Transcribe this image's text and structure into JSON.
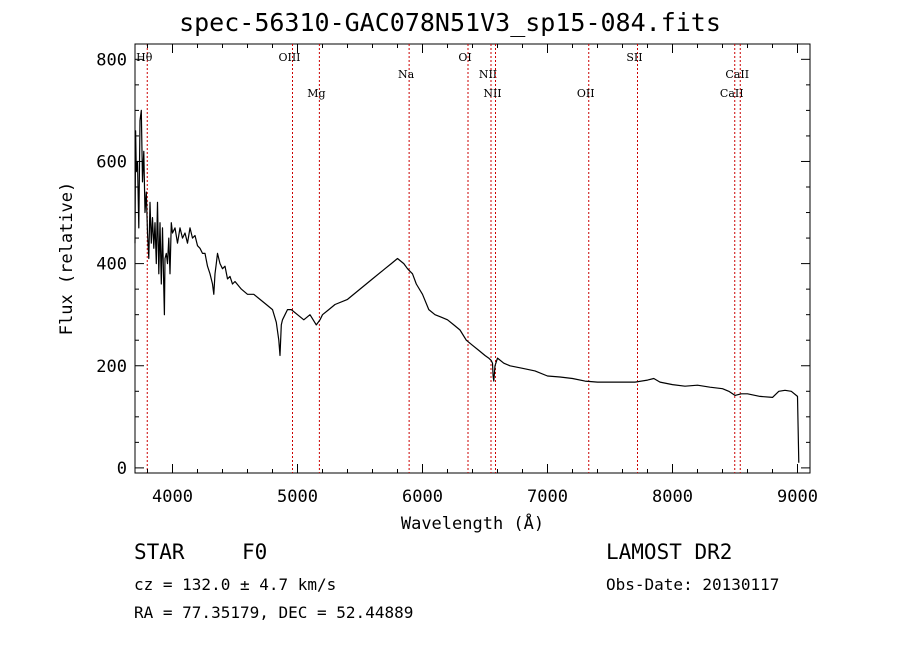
{
  "title": "spec-56310-GAC078N51V3_sp15-084.fits",
  "footer": {
    "object_class": "STAR",
    "subclass": "F0",
    "redshift": "cz = 132.0 ± 4.7 km/s",
    "coords": "RA =  77.35179, DEC =  52.44889",
    "survey": "LAMOST DR2",
    "obs_date": "Obs-Date: 20130117"
  },
  "chart_data": {
    "type": "line",
    "title": "spec-56310-GAC078N51V3_sp15-084.fits",
    "xlabel": "Wavelength (Å)",
    "ylabel": "Flux (relative)",
    "xlim": [
      3700,
      9100
    ],
    "ylim": [
      -10,
      830
    ],
    "xticks": [
      4000,
      5000,
      6000,
      7000,
      8000,
      9000
    ],
    "yticks": [
      0,
      200,
      400,
      600,
      800
    ],
    "grid": false,
    "line_color": "#000000",
    "marker_color": "#cc0000",
    "spectrum": {
      "x": [
        3700,
        3705,
        3710,
        3720,
        3730,
        3740,
        3750,
        3760,
        3770,
        3780,
        3790,
        3800,
        3810,
        3820,
        3830,
        3840,
        3850,
        3860,
        3870,
        3880,
        3890,
        3900,
        3910,
        3920,
        3930,
        3935,
        3940,
        3950,
        3960,
        3970,
        3980,
        3990,
        4000,
        4020,
        4040,
        4060,
        4080,
        4100,
        4120,
        4140,
        4160,
        4180,
        4200,
        4220,
        4240,
        4260,
        4280,
        4300,
        4320,
        4330,
        4340,
        4350,
        4360,
        4380,
        4400,
        4420,
        4440,
        4460,
        4480,
        4500,
        4550,
        4600,
        4650,
        4700,
        4750,
        4800,
        4830,
        4850,
        4860,
        4870,
        4880,
        4900,
        4920,
        4950,
        5000,
        5050,
        5100,
        5150,
        5180,
        5200,
        5250,
        5300,
        5400,
        5500,
        5600,
        5700,
        5750,
        5800,
        5850,
        5880,
        5900,
        5920,
        5950,
        6000,
        6050,
        6100,
        6150,
        6200,
        6250,
        6300,
        6350,
        6400,
        6450,
        6500,
        6530,
        6550,
        6560,
        6565,
        6570,
        6580,
        6600,
        6650,
        6700,
        6800,
        6900,
        7000,
        7100,
        7200,
        7300,
        7400,
        7500,
        7600,
        7700,
        7800,
        7850,
        7900,
        8000,
        8100,
        8200,
        8300,
        8400,
        8450,
        8500,
        8550,
        8600,
        8700,
        8800,
        8850,
        8900,
        8950,
        9000,
        9005,
        9010
      ],
      "y": [
        440,
        660,
        580,
        600,
        470,
        680,
        700,
        560,
        620,
        500,
        540,
        460,
        410,
        520,
        440,
        490,
        430,
        480,
        400,
        520,
        380,
        480,
        360,
        470,
        350,
        300,
        410,
        420,
        400,
        450,
        380,
        480,
        460,
        470,
        440,
        470,
        450,
        460,
        440,
        470,
        450,
        455,
        435,
        430,
        420,
        420,
        395,
        380,
        360,
        340,
        380,
        400,
        420,
        400,
        390,
        395,
        370,
        375,
        360,
        365,
        350,
        340,
        340,
        330,
        320,
        310,
        285,
        250,
        220,
        280,
        290,
        300,
        310,
        310,
        300,
        290,
        300,
        280,
        290,
        300,
        310,
        320,
        330,
        350,
        370,
        390,
        400,
        410,
        400,
        390,
        385,
        380,
        360,
        340,
        310,
        300,
        295,
        290,
        280,
        270,
        250,
        240,
        230,
        220,
        215,
        210,
        205,
        180,
        170,
        200,
        215,
        205,
        200,
        195,
        190,
        180,
        178,
        175,
        170,
        168,
        168,
        168,
        168,
        172,
        175,
        168,
        163,
        160,
        162,
        158,
        155,
        150,
        142,
        145,
        145,
        140,
        138,
        150,
        152,
        150,
        140,
        80,
        10
      ]
    },
    "lines": [
      {
        "label": "Hθ",
        "wavelength": 3798,
        "row": "top"
      },
      {
        "label": "OIII",
        "wavelength": 4960,
        "row": "top"
      },
      {
        "label": "Mg",
        "wavelength": 5175,
        "row": "bottom"
      },
      {
        "label": "Na",
        "wavelength": 5893,
        "row": "mid"
      },
      {
        "label": "OI",
        "wavelength": 6364,
        "row": "top"
      },
      {
        "label": "NII",
        "wavelength": 6548,
        "row": "mid"
      },
      {
        "label": "NII",
        "wavelength": 6584,
        "row": "bottom"
      },
      {
        "label": "OII",
        "wavelength": 7330,
        "row": "bottom"
      },
      {
        "label": "SII",
        "wavelength": 7720,
        "row": "top"
      },
      {
        "label": "CaII",
        "wavelength": 8498,
        "row": "bottom"
      },
      {
        "label": "CaII",
        "wavelength": 8542,
        "row": "mid"
      }
    ]
  }
}
